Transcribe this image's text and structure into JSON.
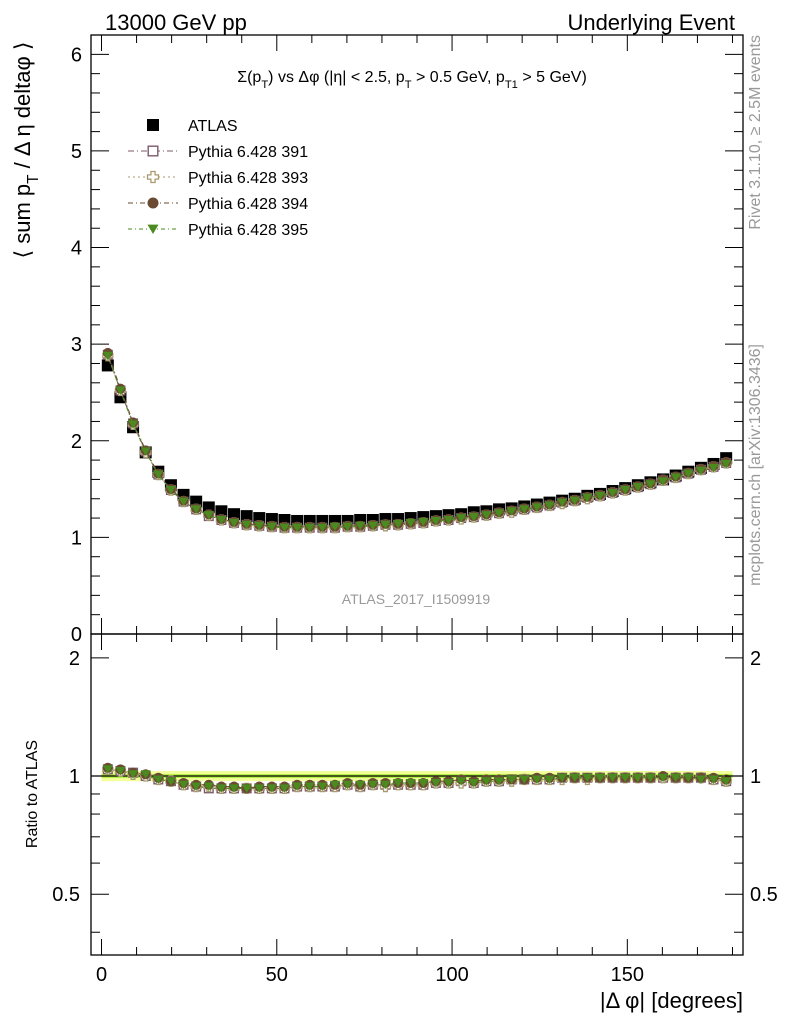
{
  "header": {
    "left": "13000 GeV pp",
    "right": "Underlying Event"
  },
  "watermarks": {
    "rivet": "Rivet 3.1.10, ≥ 2.5M events",
    "mcplots": "mcplots.cern.ch [arXiv:1306.3436]",
    "analysis": "ATLAS_2017_I1509919"
  },
  "chart_data": {
    "type": "scatter",
    "title_parts": [
      "Σ(p",
      "T",
      ") vs Δφ (|η| < 2.5, p",
      "T",
      " > 0.5 GeV, p",
      "T1",
      " > 5 GeV)"
    ],
    "ylabel_parts": [
      "⟨ sum p",
      "T",
      " / Δ η deltaφ ⟩"
    ],
    "xlabel": "|Δ φ| [degrees]",
    "ratio_ylabel": "Ratio to ATLAS",
    "xlim": [
      -3,
      183
    ],
    "ylim": [
      0,
      6.2
    ],
    "ratio_ylim": [
      0.35,
      2.3
    ],
    "x_ticks": [
      "0",
      "50",
      "100",
      "150"
    ],
    "x_tick_values": [
      0,
      50,
      100,
      150
    ],
    "y_ticks": [
      "1",
      "2",
      "3",
      "4",
      "5",
      "6"
    ],
    "y_tick_values": [
      1,
      2,
      3,
      4,
      5,
      6
    ],
    "y_zero_label": "0",
    "ratio_ticks": [
      "0.5",
      "1",
      "2"
    ],
    "ratio_tick_values": [
      0.5,
      1,
      2
    ],
    "legend_position": "top-left",
    "x": [
      1.8,
      5.4,
      9.0,
      12.6,
      16.2,
      19.8,
      23.4,
      27.0,
      30.6,
      34.2,
      37.8,
      41.4,
      45.0,
      48.6,
      52.2,
      55.8,
      59.4,
      63.0,
      66.6,
      70.2,
      73.8,
      77.4,
      81.0,
      84.6,
      88.2,
      91.8,
      95.4,
      99.0,
      102.6,
      106.2,
      109.8,
      113.4,
      117.0,
      120.6,
      124.2,
      127.8,
      131.4,
      135.0,
      138.6,
      142.2,
      145.8,
      149.4,
      153.0,
      156.6,
      160.2,
      163.8,
      167.4,
      171.0,
      174.6,
      178.2
    ],
    "series": [
      {
        "name": "ATLAS",
        "marker": "filled-square",
        "color": "#000000",
        "values": [
          2.78,
          2.45,
          2.14,
          1.88,
          1.68,
          1.54,
          1.44,
          1.37,
          1.31,
          1.27,
          1.24,
          1.22,
          1.2,
          1.19,
          1.18,
          1.17,
          1.17,
          1.17,
          1.17,
          1.17,
          1.18,
          1.18,
          1.19,
          1.19,
          1.2,
          1.21,
          1.22,
          1.23,
          1.24,
          1.26,
          1.27,
          1.29,
          1.3,
          1.32,
          1.34,
          1.36,
          1.38,
          1.4,
          1.43,
          1.45,
          1.48,
          1.51,
          1.54,
          1.57,
          1.6,
          1.64,
          1.68,
          1.72,
          1.76,
          1.82
        ],
        "ratio": [
          1,
          1,
          1,
          1,
          1,
          1,
          1,
          1,
          1,
          1,
          1,
          1,
          1,
          1,
          1,
          1,
          1,
          1,
          1,
          1,
          1,
          1,
          1,
          1,
          1,
          1,
          1,
          1,
          1,
          1,
          1,
          1,
          1,
          1,
          1,
          1,
          1,
          1,
          1,
          1,
          1,
          1,
          1,
          1,
          1,
          1,
          1,
          1,
          1,
          1
        ]
      },
      {
        "name": "Pythia 6.428 391",
        "marker": "open-square",
        "color": "#7b5a6a",
        "dash": "6,3,1,3",
        "values": [
          2.89,
          2.52,
          2.18,
          1.89,
          1.65,
          1.49,
          1.37,
          1.29,
          1.22,
          1.18,
          1.15,
          1.13,
          1.12,
          1.11,
          1.1,
          1.1,
          1.1,
          1.1,
          1.1,
          1.11,
          1.11,
          1.12,
          1.13,
          1.13,
          1.14,
          1.15,
          1.17,
          1.18,
          1.2,
          1.21,
          1.23,
          1.25,
          1.27,
          1.29,
          1.31,
          1.33,
          1.36,
          1.38,
          1.41,
          1.43,
          1.46,
          1.49,
          1.52,
          1.55,
          1.59,
          1.62,
          1.66,
          1.7,
          1.73,
          1.77
        ],
        "ratio": [
          1.04,
          1.03,
          1.02,
          1.0,
          0.98,
          0.97,
          0.95,
          0.94,
          0.93,
          0.93,
          0.93,
          0.93,
          0.93,
          0.93,
          0.93,
          0.94,
          0.94,
          0.94,
          0.94,
          0.95,
          0.94,
          0.95,
          0.95,
          0.95,
          0.95,
          0.95,
          0.96,
          0.96,
          0.97,
          0.96,
          0.97,
          0.97,
          0.98,
          0.98,
          0.98,
          0.98,
          0.99,
          0.99,
          0.99,
          0.99,
          0.99,
          0.99,
          0.99,
          0.99,
          0.99,
          0.99,
          0.99,
          0.99,
          0.98,
          0.97
        ]
      },
      {
        "name": "Pythia 6.428 393",
        "marker": "open-cross",
        "color": "#a89a6e",
        "dash": "2,3",
        "values": [
          2.88,
          2.52,
          2.17,
          1.88,
          1.65,
          1.49,
          1.37,
          1.29,
          1.23,
          1.18,
          1.15,
          1.13,
          1.12,
          1.11,
          1.1,
          1.1,
          1.1,
          1.1,
          1.1,
          1.11,
          1.11,
          1.12,
          1.12,
          1.13,
          1.14,
          1.15,
          1.17,
          1.18,
          1.19,
          1.21,
          1.23,
          1.25,
          1.26,
          1.29,
          1.31,
          1.33,
          1.35,
          1.38,
          1.4,
          1.43,
          1.46,
          1.49,
          1.52,
          1.55,
          1.59,
          1.62,
          1.66,
          1.7,
          1.73,
          1.77
        ],
        "ratio": [
          1.04,
          1.03,
          1.01,
          1.0,
          0.98,
          0.97,
          0.95,
          0.94,
          0.94,
          0.93,
          0.93,
          0.93,
          0.93,
          0.93,
          0.93,
          0.94,
          0.94,
          0.94,
          0.94,
          0.95,
          0.94,
          0.95,
          0.94,
          0.95,
          0.95,
          0.95,
          0.96,
          0.96,
          0.96,
          0.96,
          0.97,
          0.97,
          0.97,
          0.98,
          0.98,
          0.98,
          0.98,
          0.99,
          0.98,
          0.99,
          0.99,
          0.99,
          0.99,
          0.99,
          0.99,
          0.99,
          0.99,
          0.99,
          0.98,
          0.97
        ]
      },
      {
        "name": "Pythia 6.428 394",
        "marker": "filled-circle",
        "color": "#6a4a32",
        "dash": "5,3,1,3",
        "values": [
          2.91,
          2.54,
          2.19,
          1.9,
          1.66,
          1.5,
          1.38,
          1.3,
          1.24,
          1.19,
          1.16,
          1.14,
          1.13,
          1.12,
          1.11,
          1.11,
          1.11,
          1.11,
          1.11,
          1.12,
          1.12,
          1.13,
          1.14,
          1.14,
          1.15,
          1.16,
          1.18,
          1.19,
          1.21,
          1.22,
          1.24,
          1.26,
          1.28,
          1.3,
          1.32,
          1.34,
          1.37,
          1.39,
          1.42,
          1.44,
          1.47,
          1.5,
          1.53,
          1.56,
          1.6,
          1.63,
          1.67,
          1.71,
          1.74,
          1.78
        ],
        "ratio": [
          1.05,
          1.04,
          1.02,
          1.01,
          0.99,
          0.97,
          0.96,
          0.95,
          0.95,
          0.94,
          0.94,
          0.93,
          0.94,
          0.94,
          0.94,
          0.95,
          0.95,
          0.95,
          0.95,
          0.96,
          0.95,
          0.96,
          0.96,
          0.96,
          0.96,
          0.96,
          0.97,
          0.97,
          0.98,
          0.97,
          0.98,
          0.98,
          0.98,
          0.98,
          0.99,
          0.99,
          0.99,
          0.99,
          0.99,
          0.99,
          0.99,
          0.99,
          0.99,
          0.99,
          1.0,
          0.99,
          0.99,
          0.99,
          0.99,
          0.98
        ]
      },
      {
        "name": "Pythia 6.428 395",
        "marker": "filled-triangle-down",
        "color": "#4a8a1e",
        "dash": "4,3,1,3",
        "values": [
          2.88,
          2.52,
          2.17,
          1.89,
          1.65,
          1.49,
          1.37,
          1.29,
          1.23,
          1.18,
          1.15,
          1.13,
          1.12,
          1.11,
          1.1,
          1.1,
          1.1,
          1.1,
          1.11,
          1.11,
          1.12,
          1.12,
          1.13,
          1.14,
          1.15,
          1.16,
          1.17,
          1.18,
          1.2,
          1.21,
          1.23,
          1.25,
          1.27,
          1.29,
          1.31,
          1.33,
          1.36,
          1.38,
          1.41,
          1.43,
          1.46,
          1.49,
          1.52,
          1.55,
          1.58,
          1.62,
          1.66,
          1.69,
          1.72,
          1.76
        ],
        "ratio": [
          1.04,
          1.03,
          1.01,
          1.01,
          0.98,
          0.97,
          0.95,
          0.94,
          0.94,
          0.93,
          0.93,
          0.93,
          0.93,
          0.93,
          0.93,
          0.94,
          0.94,
          0.94,
          0.95,
          0.95,
          0.95,
          0.95,
          0.95,
          0.96,
          0.96,
          0.96,
          0.96,
          0.96,
          0.97,
          0.96,
          0.97,
          0.97,
          0.98,
          0.98,
          0.98,
          0.98,
          0.99,
          0.99,
          0.99,
          0.99,
          0.99,
          0.99,
          0.99,
          0.99,
          0.99,
          0.99,
          0.99,
          0.98,
          0.98,
          0.97
        ]
      }
    ]
  },
  "colors": {
    "band_outer": "#f2ff9a",
    "band_inner": "#b6f048",
    "grey_text": "#999999"
  }
}
